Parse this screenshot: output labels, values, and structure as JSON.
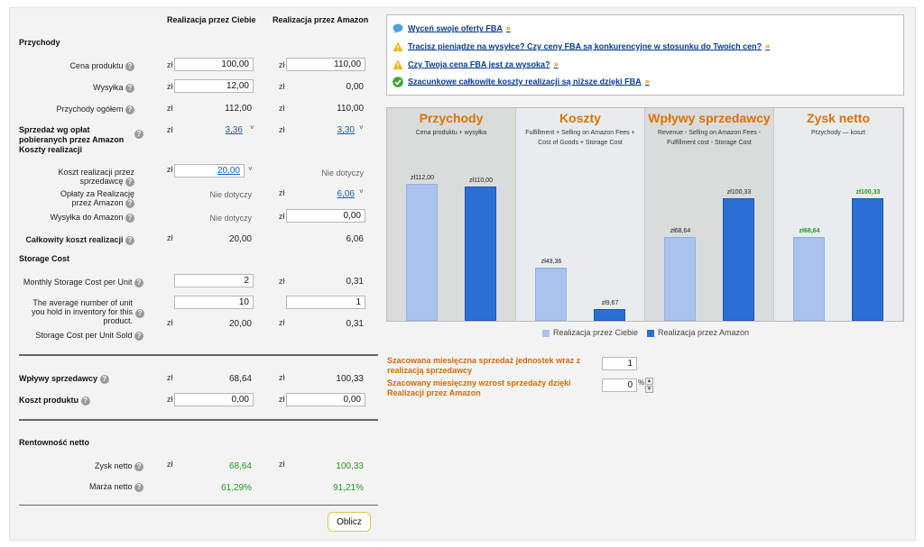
{
  "columns": {
    "you": "Realizacja przez Ciebie",
    "amazon": "Realizacja przez Amazon"
  },
  "currency": "zł",
  "sections": {
    "revenue": "Przychody",
    "storage": "Storage Cost",
    "profitability": "Rentowność netto"
  },
  "rows": {
    "price": {
      "label": "Cena produktu",
      "you": "100,00",
      "amazon": "110,00"
    },
    "shipping": {
      "label": "Wysyłka",
      "you": "12,00",
      "amazon": "0,00"
    },
    "total_revenue": {
      "label": "Przychody ogółem",
      "you": "112,00",
      "amazon": "110,00"
    },
    "fees": {
      "label": "Sprzedaż wg opłat pobieranych przez Amazon Koszty realizacji",
      "you": "3,36",
      "amazon": "3,30"
    },
    "seller_fulfillment": {
      "label": "Koszt realizacji przez sprzedawcę",
      "you": "20,00",
      "amazon": "Nie dotyczy"
    },
    "amazon_fulfillment": {
      "label": "Opłaty za Realizację przez Amazon",
      "you": "Nie dotyczy",
      "amazon": "6,06"
    },
    "ship_to_amazon": {
      "label": "Wysyłka do Amazon",
      "you": "Nie dotyczy",
      "amazon": "0,00"
    },
    "total_fulfillment": {
      "label": "Całkowity koszt realizacji",
      "you": "20,00",
      "amazon": "6,06"
    },
    "monthly_storage": {
      "label": "Monthly Storage Cost per Unit",
      "you": "2",
      "amazon": "0,31"
    },
    "avg_units": {
      "label": "The average number of unit you hold in inventory for this product.",
      "you": "10",
      "amazon": "1"
    },
    "storage_per_unit": {
      "label": "Storage Cost per Unit Sold",
      "you": "20,00",
      "amazon": "0,31"
    },
    "seller_proceeds": {
      "label": "Wpływy sprzedawcy",
      "you": "68,64",
      "amazon": "100,33"
    },
    "product_cost": {
      "label": "Koszt produktu",
      "you": "0,00",
      "amazon": "0,00"
    },
    "net_profit": {
      "label": "Zysk netto",
      "you": "68,64",
      "amazon": "100,33"
    },
    "net_margin": {
      "label": "Marża netto",
      "you": "61,29%",
      "amazon": "91,21%"
    }
  },
  "messages": [
    {
      "text": "Wyceń swoje oferty FBA",
      "icon": "speech-bubble-icon"
    },
    {
      "text": "Tracisz pieniądze na wysyłce? Czy ceny FBA są konkurencyjne w stosunku do Twoich cen?",
      "icon": "warning-icon"
    },
    {
      "text": "Czy Twoja cena FBA jest za wysoka?",
      "icon": "warning-icon"
    },
    {
      "text": "Szacunkowe całkowite koszty realizacji są niższe dzięki FBA",
      "icon": "check-circle-icon"
    }
  ],
  "chart_data": {
    "type": "bar",
    "categories": [
      "Przychody",
      "Koszty",
      "Wpływy sprzedawcy",
      "Zysk netto"
    ],
    "subtitles": [
      "Cena produktu + wysyłka",
      "Fulfillment + Selling on Amazon Fees + Cost of Goods + Storage Cost",
      "Revenue - Selling on Amazon Fees - Fulfillment cost - Storage Cost",
      "Przychody — koszt"
    ],
    "series": [
      {
        "name": "Realizacja przez Ciebie",
        "values": [
          112.0,
          43.36,
          68.64,
          68.64
        ],
        "labels": [
          "zł112,00",
          "zł43,36",
          "zł68,64",
          "zł68,64"
        ],
        "color": "#a9c4ec"
      },
      {
        "name": "Realizacja przez Amazon",
        "values": [
          110.0,
          9.67,
          100.33,
          100.33
        ],
        "labels": [
          "zł110,00",
          "zł9,67",
          "zł100,33",
          "zł100,33"
        ],
        "color": "#2b6fd6"
      }
    ],
    "ylim": [
      0,
      130
    ]
  },
  "estimates": {
    "monthly_sales_label": "Szacowana miesięczna sprzedaż jednostek wraz z realizacją sprzedawcy",
    "monthly_sales_value": "1",
    "growth_label": "Szacowany miesięczny wzrost sprzedaży dzięki Realizacji przez Amazon",
    "growth_value": "0",
    "growth_unit": "%"
  },
  "buttons": {
    "calculate": "Oblicz"
  },
  "colors": {
    "accent_orange": "#e07000",
    "link_blue": "#1a5bb8",
    "profit_green": "#1f9a1f"
  }
}
